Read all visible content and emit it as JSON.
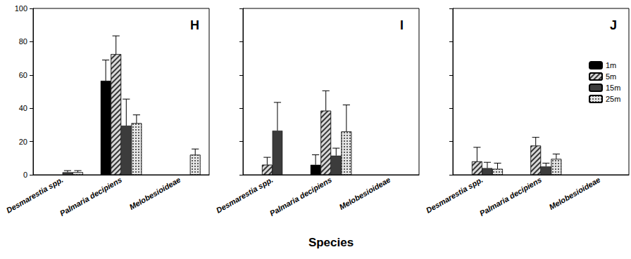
{
  "chart_data": [
    {
      "type": "bar",
      "title": "H",
      "categories": [
        "Desmarestia spp.",
        "Palmaria decipiens",
        "Melobesioideae"
      ],
      "series": [
        {
          "name": "1m",
          "color": "#000000",
          "values": [
            null,
            56.5,
            null
          ],
          "errors": [
            null,
            12.5,
            null
          ]
        },
        {
          "name": "5m",
          "color": "#d9d9d9",
          "values": [
            null,
            72.5,
            null
          ],
          "errors": [
            null,
            11,
            null
          ]
        },
        {
          "name": "15m",
          "color": "#3c3c3c",
          "values": [
            1.5,
            29.5,
            null
          ],
          "errors": [
            1,
            16,
            null
          ]
        },
        {
          "name": "25m",
          "color": "#e6e6e6",
          "values": [
            1.5,
            31,
            12
          ],
          "errors": [
            1,
            5,
            3.5
          ]
        }
      ],
      "ylim": [
        0,
        100
      ],
      "yticks": [
        0,
        20,
        40,
        60,
        80,
        100
      ],
      "grid": false
    },
    {
      "type": "bar",
      "title": "I",
      "xlabel": "Species",
      "categories": [
        "Desmarestia spp.",
        "Palmaria decipiens",
        "Melobesioideae"
      ],
      "series": [
        {
          "name": "1m",
          "color": "#000000",
          "values": [
            null,
            6,
            null
          ],
          "errors": [
            null,
            6,
            null
          ]
        },
        {
          "name": "5m",
          "color": "#d9d9d9",
          "values": [
            6,
            38.5,
            null
          ],
          "errors": [
            4.5,
            12,
            null
          ]
        },
        {
          "name": "15m",
          "color": "#3c3c3c",
          "values": [
            26.5,
            11.5,
            null
          ],
          "errors": [
            17,
            4.5,
            null
          ]
        },
        {
          "name": "25m",
          "color": "#e6e6e6",
          "values": [
            null,
            26,
            null
          ],
          "errors": [
            null,
            16,
            null
          ]
        }
      ],
      "ylim": [
        0,
        100
      ],
      "yticks": [
        0,
        20,
        40,
        60,
        80,
        100
      ],
      "grid": false,
      "tick_labels": "x"
    },
    {
      "type": "bar",
      "title": "J",
      "categories": [
        "Desmarestia spp.",
        "Palmaria decipiens",
        "Melobesioideae"
      ],
      "series": [
        {
          "name": "1m",
          "color": "#000000",
          "values": [
            null,
            null,
            null
          ],
          "errors": [
            null,
            null,
            null
          ]
        },
        {
          "name": "5m",
          "color": "#d9d9d9",
          "values": [
            8,
            17.5,
            null
          ],
          "errors": [
            8.5,
            5,
            null
          ]
        },
        {
          "name": "15m",
          "color": "#3c3c3c",
          "values": [
            4,
            5,
            null
          ],
          "errors": [
            3.5,
            2,
            null
          ]
        },
        {
          "name": "25m",
          "color": "#e6e6e6",
          "values": [
            3.5,
            9.5,
            null
          ],
          "errors": [
            3.5,
            3,
            null
          ]
        }
      ],
      "ylim": [
        0,
        100
      ],
      "yticks": [
        0,
        20,
        40,
        60,
        80,
        100
      ],
      "grid": false,
      "tick_labels": "x",
      "legend": "upper right"
    }
  ]
}
